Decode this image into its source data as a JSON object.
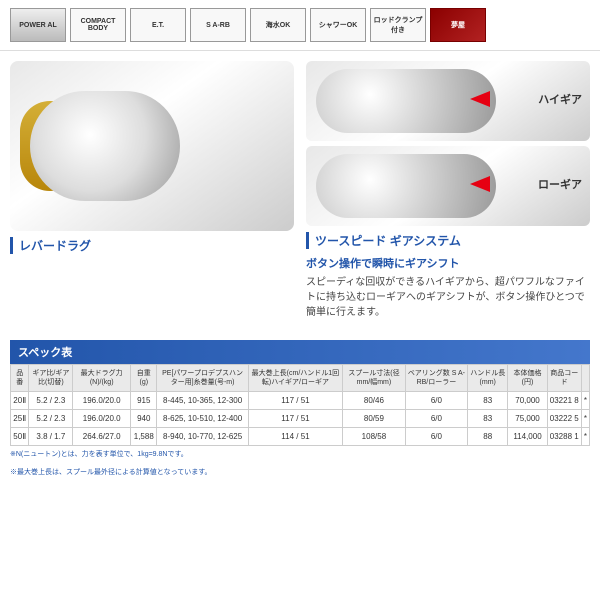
{
  "badges": [
    "POWER AL",
    "COMPACT BODY",
    "E.T.",
    "S A-RB",
    "海水OK",
    "シャワーOK",
    "ロッドクランプ付き",
    "夢屋"
  ],
  "caption_left": "レバードラグ",
  "caption_right": "ツースピード ギアシステム",
  "subtitle": "ボタン操作で瞬時にギアシフト",
  "gear_hi": "ハイギア",
  "gear_lo": "ローギア",
  "desc": "スピーディな回収ができるハイギアから、超パワフルなファイトに持ち込むローギアへのギアシフトが、ボタン操作ひとつで簡単に行えます。",
  "spec_label": "スペック表",
  "headers": [
    "品番",
    "ギア比/ギア比(切替)",
    "最大ドラグ力(N)/(kg)",
    "自重(g)",
    "PE[パワープロデプスハンター用]糸巻量(号-m)",
    "最大巻上長(cm/ハンドル1回転)ハイギア/ローギア",
    "スプール寸法(径mm/幅mm)",
    "ベアリング数 S A-RB/ローラー",
    "ハンドル長(mm)",
    "本体価格(円)",
    "商品コード",
    ""
  ],
  "rows": [
    [
      "20Ⅱ",
      "5.2 / 2.3",
      "196.0/20.0",
      "915",
      "8-445, 10-365, 12-300",
      "117 / 51",
      "80/46",
      "6/0",
      "83",
      "70,000",
      "03221 8",
      "*"
    ],
    [
      "25Ⅱ",
      "5.2 / 2.3",
      "196.0/20.0",
      "940",
      "8-625, 10-510, 12-400",
      "117 / 51",
      "80/59",
      "6/0",
      "83",
      "75,000",
      "03222 5",
      "*"
    ],
    [
      "50Ⅱ",
      "3.8 / 1.7",
      "264.6/27.0",
      "1,588",
      "8-940, 10-770, 12-625",
      "114 / 51",
      "108/58",
      "6/0",
      "88",
      "114,000",
      "03288 1",
      "*"
    ]
  ],
  "note1": "※N(ニュートン)とは、力を表す単位で、1kg=9.8Nです。",
  "note2": "※最大巻上長は、スプール最外径による計算値となっています。"
}
